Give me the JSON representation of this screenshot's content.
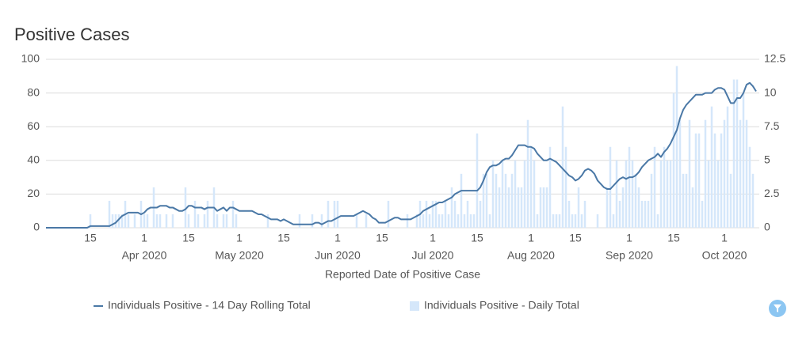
{
  "chart_data": {
    "type": "combo",
    "title": "Positive Cases",
    "x_label": "Reported Date of Positive Case",
    "x": [
      "2020-03-01",
      "2020-03-02",
      "2020-03-03",
      "2020-03-04",
      "2020-03-05",
      "2020-03-06",
      "2020-03-07",
      "2020-03-08",
      "2020-03-09",
      "2020-03-10",
      "2020-03-11",
      "2020-03-12",
      "2020-03-13",
      "2020-03-14",
      "2020-03-15",
      "2020-03-16",
      "2020-03-17",
      "2020-03-18",
      "2020-03-19",
      "2020-03-20",
      "2020-03-21",
      "2020-03-22",
      "2020-03-23",
      "2020-03-24",
      "2020-03-25",
      "2020-03-26",
      "2020-03-27",
      "2020-03-28",
      "2020-03-29",
      "2020-03-30",
      "2020-03-31",
      "2020-04-01",
      "2020-04-02",
      "2020-04-03",
      "2020-04-04",
      "2020-04-05",
      "2020-04-06",
      "2020-04-07",
      "2020-04-08",
      "2020-04-09",
      "2020-04-10",
      "2020-04-11",
      "2020-04-12",
      "2020-04-13",
      "2020-04-14",
      "2020-04-15",
      "2020-04-16",
      "2020-04-17",
      "2020-04-18",
      "2020-04-19",
      "2020-04-20",
      "2020-04-21",
      "2020-04-22",
      "2020-04-23",
      "2020-04-24",
      "2020-04-25",
      "2020-04-26",
      "2020-04-27",
      "2020-04-28",
      "2020-04-29",
      "2020-04-30",
      "2020-05-01",
      "2020-05-02",
      "2020-05-03",
      "2020-05-04",
      "2020-05-05",
      "2020-05-06",
      "2020-05-07",
      "2020-05-08",
      "2020-05-09",
      "2020-05-10",
      "2020-05-11",
      "2020-05-12",
      "2020-05-13",
      "2020-05-14",
      "2020-05-15",
      "2020-05-16",
      "2020-05-17",
      "2020-05-18",
      "2020-05-19",
      "2020-05-20",
      "2020-05-21",
      "2020-05-22",
      "2020-05-23",
      "2020-05-24",
      "2020-05-25",
      "2020-05-26",
      "2020-05-27",
      "2020-05-28",
      "2020-05-29",
      "2020-05-30",
      "2020-05-31",
      "2020-06-01",
      "2020-06-02",
      "2020-06-03",
      "2020-06-04",
      "2020-06-05",
      "2020-06-06",
      "2020-06-07",
      "2020-06-08",
      "2020-06-09",
      "2020-06-10",
      "2020-06-11",
      "2020-06-12",
      "2020-06-13",
      "2020-06-14",
      "2020-06-15",
      "2020-06-16",
      "2020-06-17",
      "2020-06-18",
      "2020-06-19",
      "2020-06-20",
      "2020-06-21",
      "2020-06-22",
      "2020-06-23",
      "2020-06-24",
      "2020-06-25",
      "2020-06-26",
      "2020-06-27",
      "2020-06-28",
      "2020-06-29",
      "2020-06-30",
      "2020-07-01",
      "2020-07-02",
      "2020-07-03",
      "2020-07-04",
      "2020-07-05",
      "2020-07-06",
      "2020-07-07",
      "2020-07-08",
      "2020-07-09",
      "2020-07-10",
      "2020-07-11",
      "2020-07-12",
      "2020-07-13",
      "2020-07-14",
      "2020-07-15",
      "2020-07-16",
      "2020-07-17",
      "2020-07-18",
      "2020-07-19",
      "2020-07-20",
      "2020-07-21",
      "2020-07-22",
      "2020-07-23",
      "2020-07-24",
      "2020-07-25",
      "2020-07-26",
      "2020-07-27",
      "2020-07-28",
      "2020-07-29",
      "2020-07-30",
      "2020-07-31",
      "2020-08-01",
      "2020-08-02",
      "2020-08-03",
      "2020-08-04",
      "2020-08-05",
      "2020-08-06",
      "2020-08-07",
      "2020-08-08",
      "2020-08-09",
      "2020-08-10",
      "2020-08-11",
      "2020-08-12",
      "2020-08-13",
      "2020-08-14",
      "2020-08-15",
      "2020-08-16",
      "2020-08-17",
      "2020-08-18",
      "2020-08-19",
      "2020-08-20",
      "2020-08-21",
      "2020-08-22",
      "2020-08-23",
      "2020-08-24",
      "2020-08-25",
      "2020-08-26",
      "2020-08-27",
      "2020-08-28",
      "2020-08-29",
      "2020-08-30",
      "2020-08-31",
      "2020-09-01",
      "2020-09-02",
      "2020-09-03",
      "2020-09-04",
      "2020-09-05",
      "2020-09-06",
      "2020-09-07",
      "2020-09-08",
      "2020-09-09",
      "2020-09-10",
      "2020-09-11",
      "2020-09-12",
      "2020-09-13",
      "2020-09-14",
      "2020-09-15",
      "2020-09-16",
      "2020-09-17",
      "2020-09-18",
      "2020-09-19",
      "2020-09-20",
      "2020-09-21",
      "2020-09-22",
      "2020-09-23",
      "2020-09-24",
      "2020-09-25",
      "2020-09-26",
      "2020-09-27",
      "2020-09-28",
      "2020-09-29",
      "2020-09-30",
      "2020-10-01",
      "2020-10-02",
      "2020-10-03",
      "2020-10-04",
      "2020-10-05",
      "2020-10-06",
      "2020-10-07",
      "2020-10-08",
      "2020-10-09",
      "2020-10-10",
      "2020-10-11"
    ],
    "xlim": [
      "2020-03-01",
      "2020-10-12"
    ],
    "xticks": [
      {
        "value": "2020-03-15",
        "label": "15"
      },
      {
        "value": "2020-04-01",
        "label": "1",
        "sublabel": "Apr 2020"
      },
      {
        "value": "2020-04-15",
        "label": "15"
      },
      {
        "value": "2020-05-01",
        "label": "1",
        "sublabel": "May 2020"
      },
      {
        "value": "2020-05-15",
        "label": "15"
      },
      {
        "value": "2020-06-01",
        "label": "1",
        "sublabel": "Jun 2020"
      },
      {
        "value": "2020-06-15",
        "label": "15"
      },
      {
        "value": "2020-07-01",
        "label": "1",
        "sublabel": "Jul 2020"
      },
      {
        "value": "2020-07-15",
        "label": "15"
      },
      {
        "value": "2020-08-01",
        "label": "1",
        "sublabel": "Aug 2020"
      },
      {
        "value": "2020-08-15",
        "label": "15"
      },
      {
        "value": "2020-09-01",
        "label": "1",
        "sublabel": "Sep 2020"
      },
      {
        "value": "2020-09-15",
        "label": "15"
      },
      {
        "value": "2020-10-01",
        "label": "1",
        "sublabel": "Oct 2020"
      }
    ],
    "ylim": [
      0,
      100
    ],
    "yticks": [
      0,
      20,
      40,
      60,
      80,
      100
    ],
    "y2lim": [
      0,
      12.5
    ],
    "y2ticks": [
      0,
      2.5,
      5,
      7.5,
      10,
      12.5
    ],
    "grid": true,
    "series": [
      {
        "name": "Individuals Positive - 14 Day Rolling Total",
        "type": "line",
        "color": "#4a78a6",
        "values": [
          0,
          0,
          0,
          0,
          0,
          0,
          0,
          0,
          0,
          0,
          0,
          0,
          0,
          0,
          1,
          1,
          1,
          1,
          1,
          1,
          1,
          2,
          3,
          5,
          7,
          8,
          9,
          9,
          9,
          9,
          8,
          9,
          11,
          12,
          12,
          12,
          13,
          13,
          13,
          12,
          12,
          11,
          10,
          10,
          11,
          13,
          13,
          12,
          12,
          12,
          11,
          12,
          12,
          12,
          10,
          11,
          12,
          10,
          12,
          12,
          11,
          10,
          10,
          10,
          10,
          10,
          9,
          8,
          8,
          7,
          6,
          5,
          5,
          5,
          4,
          5,
          4,
          3,
          2,
          2,
          2,
          2,
          2,
          2,
          2,
          3,
          3,
          2,
          3,
          4,
          4,
          5,
          6,
          7,
          7,
          7,
          7,
          7,
          8,
          9,
          10,
          9,
          8,
          6,
          5,
          3,
          3,
          3,
          4,
          5,
          6,
          6,
          5,
          5,
          5,
          5,
          6,
          7,
          8,
          10,
          11,
          12,
          13,
          14,
          15,
          15,
          16,
          17,
          18,
          20,
          21,
          22,
          22,
          22,
          22,
          22,
          22,
          24,
          28,
          33,
          36,
          37,
          37,
          38,
          40,
          41,
          41,
          43,
          46,
          49,
          49,
          49,
          48,
          48,
          47,
          44,
          42,
          40,
          40,
          41,
          40,
          39,
          37,
          35,
          33,
          31,
          30,
          28,
          29,
          31,
          34,
          35,
          34,
          32,
          28,
          26,
          24,
          23,
          23,
          25,
          27,
          29,
          30,
          29,
          30,
          30,
          31,
          33,
          36,
          38,
          40,
          41,
          42,
          44,
          42,
          45,
          47,
          50,
          54,
          58,
          65,
          70,
          73,
          75,
          77,
          79,
          79,
          79,
          80,
          80,
          80,
          82,
          83,
          83,
          82,
          78,
          74,
          74,
          77,
          77,
          80,
          85,
          86,
          84,
          81
        ]
      },
      {
        "name": "Individuals Positive - Daily Total",
        "type": "bar",
        "axis": "y2",
        "color": "#d5e7fa",
        "values": [
          0,
          0,
          0,
          0,
          0,
          0,
          0,
          0,
          0,
          0,
          0,
          0,
          0,
          0,
          1,
          0,
          0,
          0,
          0,
          0,
          2,
          1,
          1,
          1,
          1,
          2,
          1,
          0,
          1,
          0,
          2,
          1,
          1,
          0,
          3,
          1,
          1,
          0,
          1,
          0,
          1,
          0,
          0,
          0,
          3,
          1,
          0,
          2,
          1,
          0,
          1,
          2,
          0,
          3,
          1,
          0,
          1,
          1,
          0,
          2,
          1,
          0,
          0,
          0,
          0,
          0,
          0,
          0,
          0,
          0,
          1,
          0,
          0,
          0,
          0,
          0,
          0,
          0,
          0,
          0,
          1,
          0,
          0,
          0,
          1,
          0,
          0,
          1,
          0,
          2,
          0,
          2,
          2,
          0,
          0,
          0,
          0,
          0,
          1,
          0,
          0,
          1,
          0,
          0,
          0,
          0,
          0,
          0,
          2,
          0,
          0,
          0,
          0,
          0,
          1,
          0,
          0,
          1,
          2,
          1,
          2,
          1,
          2,
          2,
          1,
          1,
          2,
          1,
          3,
          2,
          1,
          4,
          1,
          2,
          1,
          1,
          7,
          2,
          4,
          4,
          1,
          5,
          4,
          3,
          5,
          4,
          3,
          4,
          5,
          3,
          3,
          5,
          8,
          6,
          5,
          1,
          3,
          3,
          3,
          6,
          1,
          1,
          1,
          9,
          6,
          2,
          1,
          1,
          3,
          1,
          2,
          0,
          0,
          0,
          1,
          0,
          0,
          3,
          6,
          1,
          5,
          2,
          3,
          5,
          6,
          5,
          4,
          3,
          2,
          2,
          2,
          4,
          6,
          1,
          5,
          6,
          5,
          5,
          10,
          12,
          8,
          4,
          4,
          8,
          3,
          7,
          7,
          2,
          8,
          5,
          9,
          7,
          5,
          7,
          8,
          9,
          4,
          11,
          11,
          8,
          10,
          8,
          6,
          4,
          0
        ]
      }
    ]
  }
}
